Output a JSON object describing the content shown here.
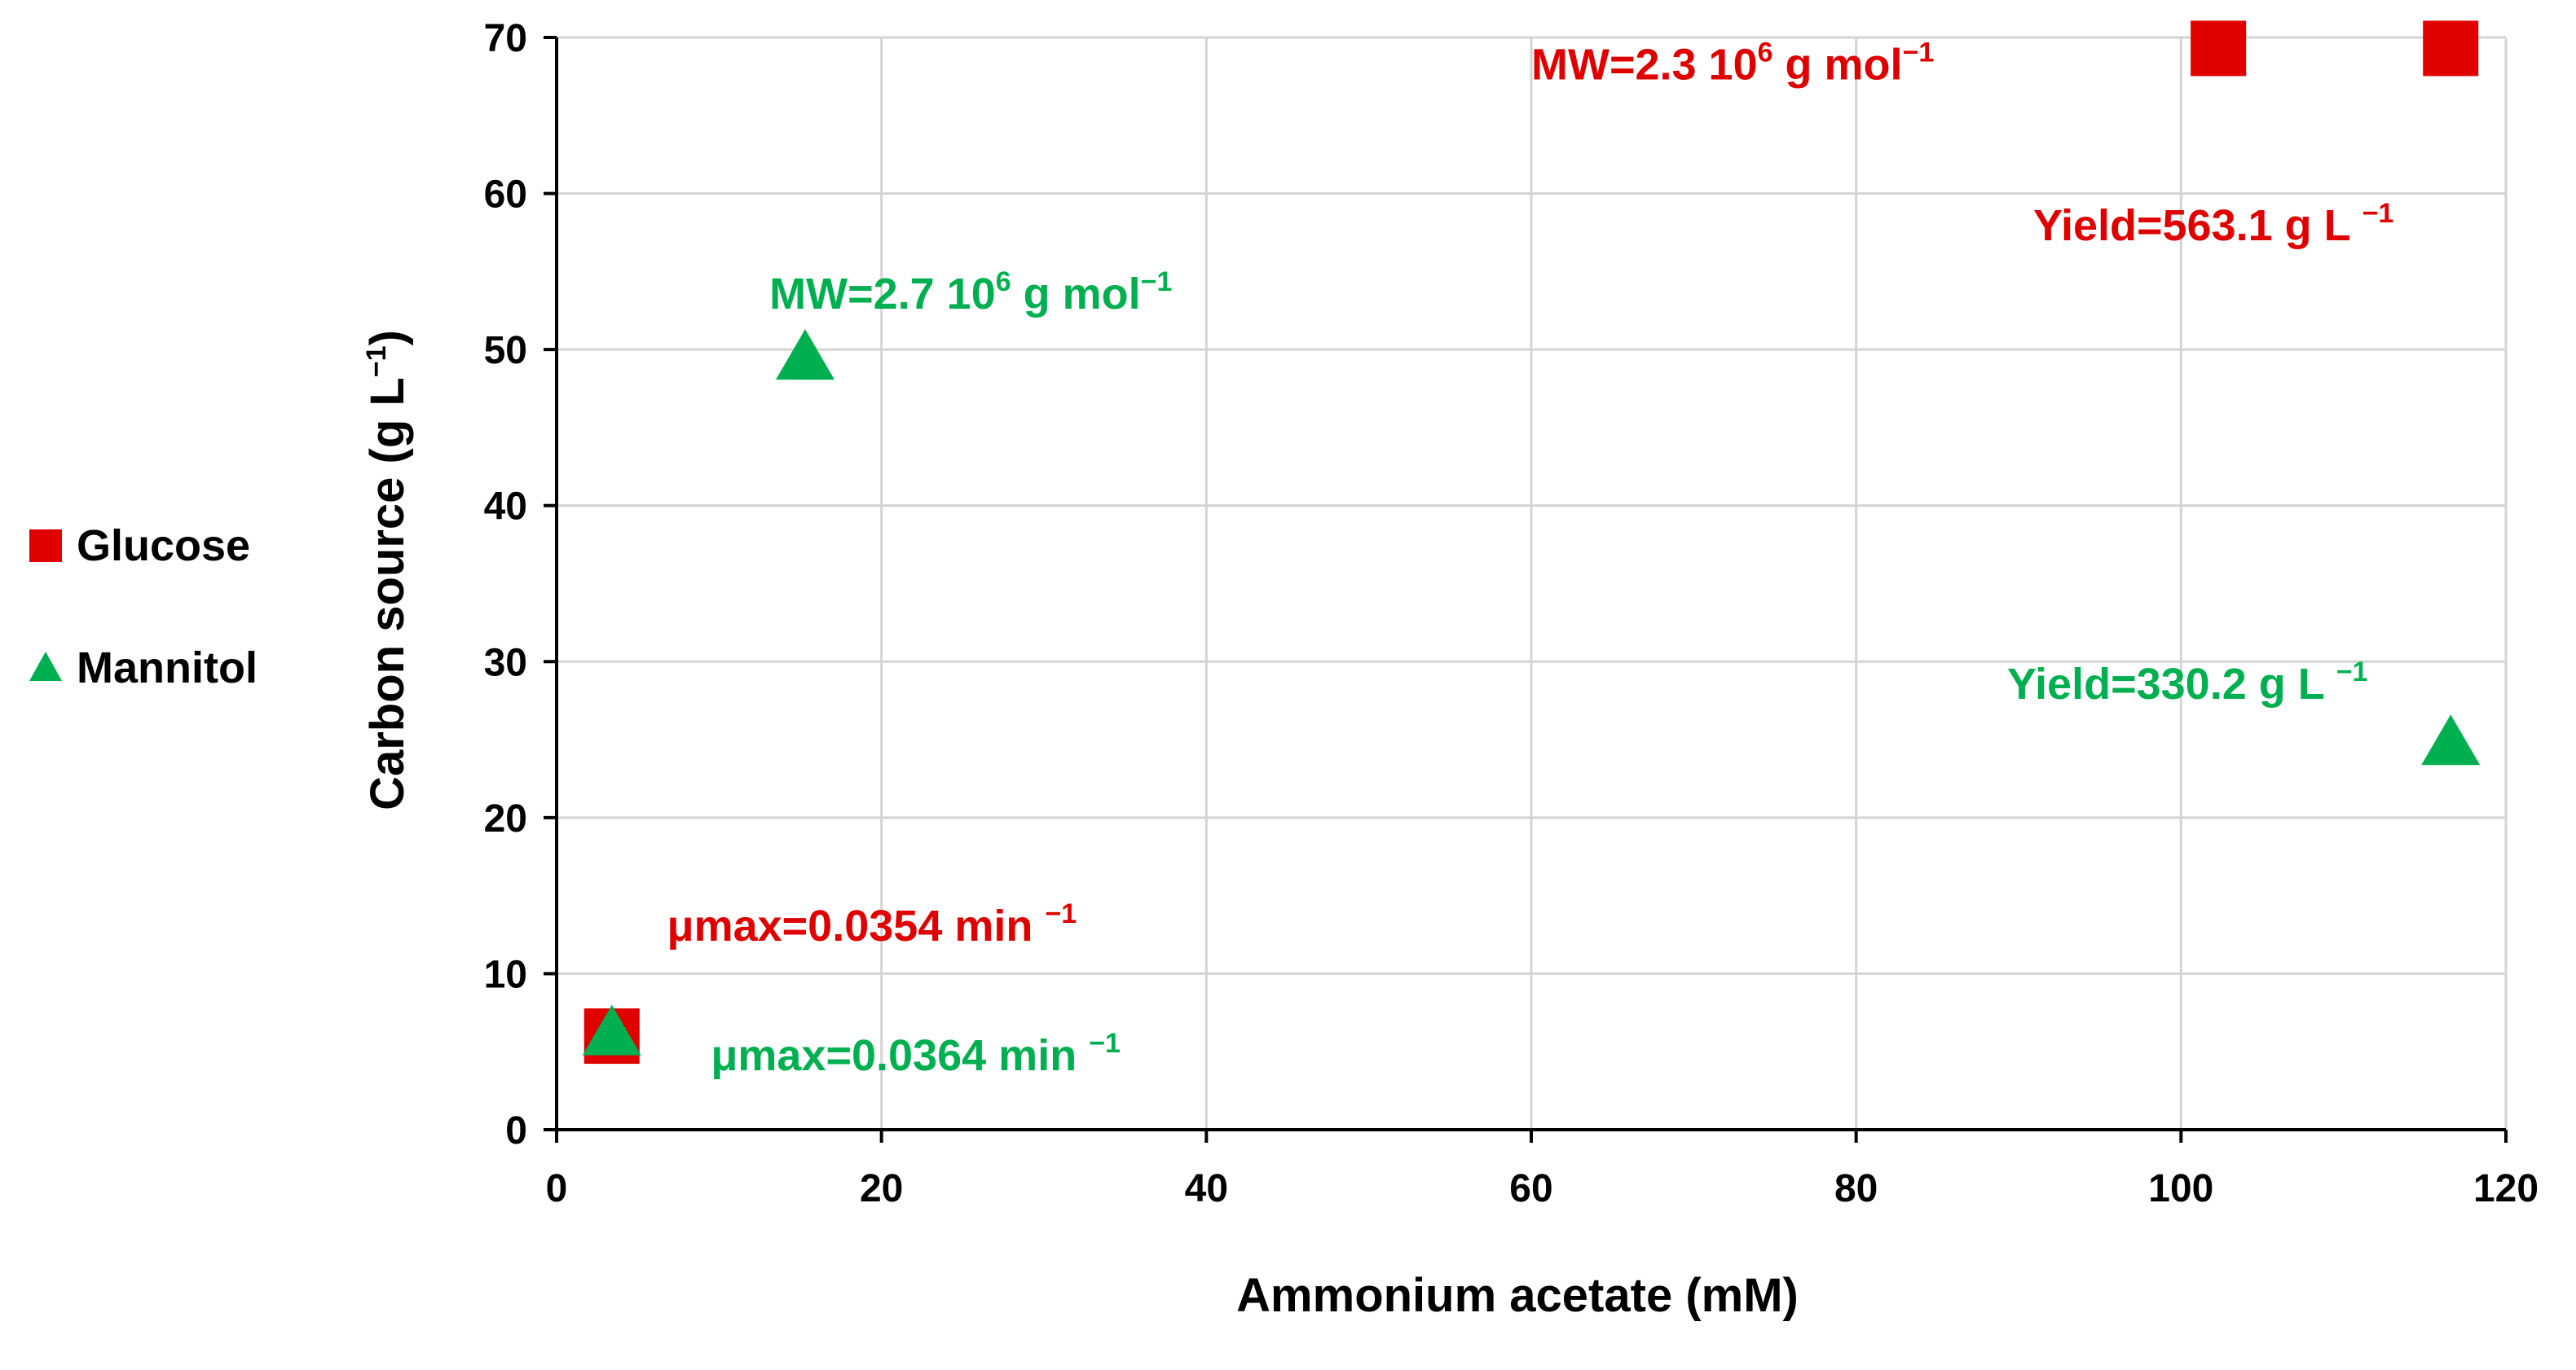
{
  "chart_data": {
    "type": "scatter",
    "title": "",
    "xlabel": "Ammonium acetate (mM)",
    "ylabel_main": "Carbon source (g L",
    "ylabel_sup": "−1",
    "ylabel_close": ")",
    "xlim": [
      0,
      120
    ],
    "ylim": [
      0,
      70
    ],
    "xticks": [
      0,
      20,
      40,
      60,
      80,
      100,
      120
    ],
    "yticks": [
      0,
      10,
      20,
      30,
      40,
      50,
      60,
      70
    ],
    "grid": true,
    "legend_position": "left",
    "series": [
      {
        "name": "Glucose",
        "marker": "square",
        "color": "#e00000",
        "points": [
          {
            "x": 3.4,
            "y": 6
          },
          {
            "x": 102.3,
            "y": 69.3
          },
          {
            "x": 116.6,
            "y": 69.3
          }
        ]
      },
      {
        "name": "Mannitol",
        "marker": "triangle",
        "color": "#00b050",
        "points": [
          {
            "x": 3.4,
            "y": 6
          },
          {
            "x": 15.3,
            "y": 49.3
          },
          {
            "x": 116.6,
            "y": 24.6
          }
        ]
      }
    ],
    "annotations": [
      {
        "id": "mw-glucose",
        "color": "#e00000",
        "x": 60,
        "y": 68.3,
        "anchor": "start",
        "base": "MW=2.3 10",
        "sup1": "6",
        "mid": " g mol",
        "sup2": "−1"
      },
      {
        "id": "yield-glucose",
        "color": "#e00000",
        "x": 90.9,
        "y": 58,
        "anchor": "start",
        "base": "Yield=563.1 g L ",
        "sup1": "",
        "mid": "",
        "sup2": "−1"
      },
      {
        "id": "mw-mannitol",
        "color": "#00b050",
        "x": 13.1,
        "y": 53.6,
        "anchor": "start",
        "base": "MW=2.7 10",
        "sup1": "6",
        "mid": " g mol",
        "sup2": "−1"
      },
      {
        "id": "yield-mannitol",
        "color": "#00b050",
        "x": 89.3,
        "y": 28.6,
        "anchor": "start",
        "base": "Yield=330.2 g L ",
        "sup1": "",
        "mid": "",
        "sup2": "−1"
      },
      {
        "id": "umax-glucose",
        "color": "#e00000",
        "x": 6.8,
        "y": 13.1,
        "anchor": "start",
        "base": "μmax=0.0354 min ",
        "sup1": "",
        "mid": "",
        "sup2": "−1"
      },
      {
        "id": "umax-mannitol",
        "color": "#00b050",
        "x": 9.5,
        "y": 4.8,
        "anchor": "start",
        "base": "μmax=0.0364 min ",
        "sup1": "",
        "mid": "",
        "sup2": "−1"
      }
    ]
  }
}
